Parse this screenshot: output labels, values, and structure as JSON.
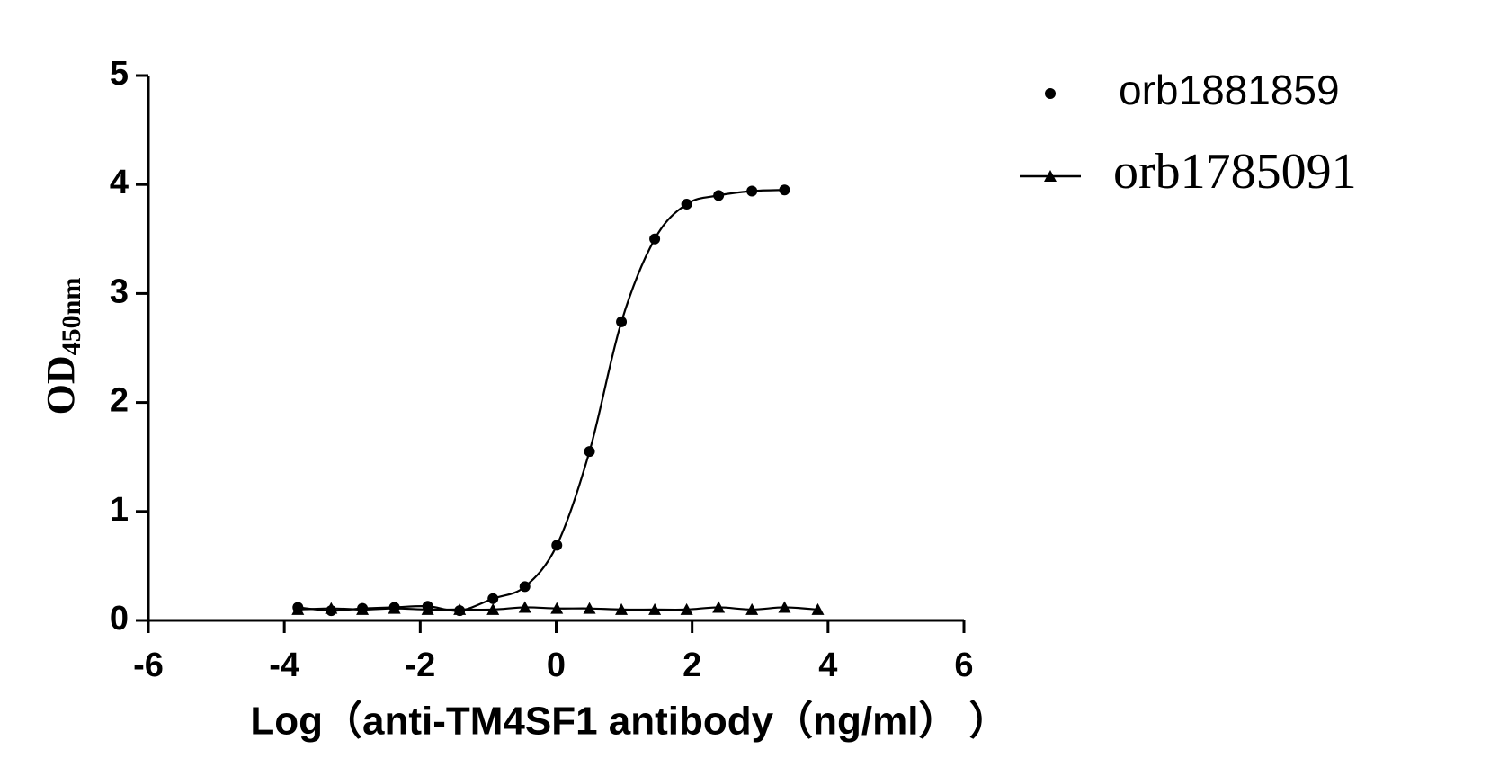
{
  "chart_data": {
    "type": "scatter",
    "x_label": "Log（anti-TM4SF1 antibody（ng/ml）  ）",
    "y_label": "OD",
    "y_label_sub": "450nm",
    "xlim": [
      -6,
      6
    ],
    "xticks": [
      -6,
      -4,
      -2,
      0,
      2,
      4,
      6
    ],
    "ylim": [
      0,
      5
    ],
    "yticks": [
      0,
      1,
      2,
      3,
      4,
      5
    ],
    "series": [
      {
        "name": "orb1881859",
        "color": "#000000",
        "marker": "circle",
        "legend_line": false,
        "x": [
          -3.8,
          -3.31,
          -2.85,
          -2.38,
          -1.89,
          -1.42,
          -0.93,
          -0.46,
          0.01,
          0.49,
          0.96,
          1.45,
          1.92,
          2.39,
          2.88,
          3.36
        ],
        "values": [
          0.12,
          0.09,
          0.11,
          0.12,
          0.13,
          0.09,
          0.2,
          0.31,
          0.69,
          1.55,
          2.74,
          3.5,
          3.82,
          3.9,
          3.94,
          3.95
        ]
      },
      {
        "name": "orb1785091",
        "color": "#000000",
        "marker": "triangle",
        "legend_line": true,
        "x": [
          -3.8,
          -3.31,
          -2.85,
          -2.38,
          -1.89,
          -1.42,
          -0.93,
          -0.46,
          0.01,
          0.49,
          0.96,
          1.45,
          1.92,
          2.39,
          2.88,
          3.36,
          3.85
        ],
        "values": [
          0.1,
          0.11,
          0.1,
          0.11,
          0.1,
          0.1,
          0.1,
          0.12,
          0.11,
          0.11,
          0.1,
          0.1,
          0.1,
          0.12,
          0.1,
          0.12,
          0.1
        ]
      }
    ]
  }
}
